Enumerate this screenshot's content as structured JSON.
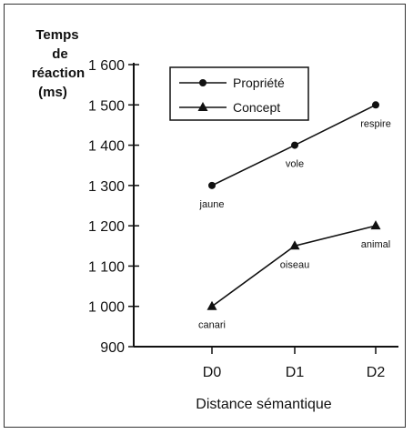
{
  "chart_data": {
    "type": "line",
    "ylabel_lines": [
      "Temps",
      "de",
      "réaction",
      "(ms)"
    ],
    "xlabel": "Distance sémantique",
    "categories": [
      "D0",
      "D1",
      "D2"
    ],
    "ylim": [
      900,
      1600
    ],
    "yticks": [
      900,
      1000,
      1100,
      1200,
      1300,
      1400,
      1500,
      1600
    ],
    "ytick_labels": [
      "900",
      "1 000",
      "1 100",
      "1 200",
      "1 300",
      "1 400",
      "1 500",
      "1 600"
    ],
    "grid": false,
    "legend_position": "top-right",
    "series": [
      {
        "name": "Propriété",
        "marker": "circle",
        "values": [
          1300,
          1400,
          1500
        ],
        "point_labels": [
          "jaune",
          "vole",
          "respire"
        ]
      },
      {
        "name": "Concept",
        "marker": "triangle",
        "values": [
          1000,
          1150,
          1200
        ],
        "point_labels": [
          "canari",
          "oiseau",
          "animal"
        ]
      }
    ]
  }
}
